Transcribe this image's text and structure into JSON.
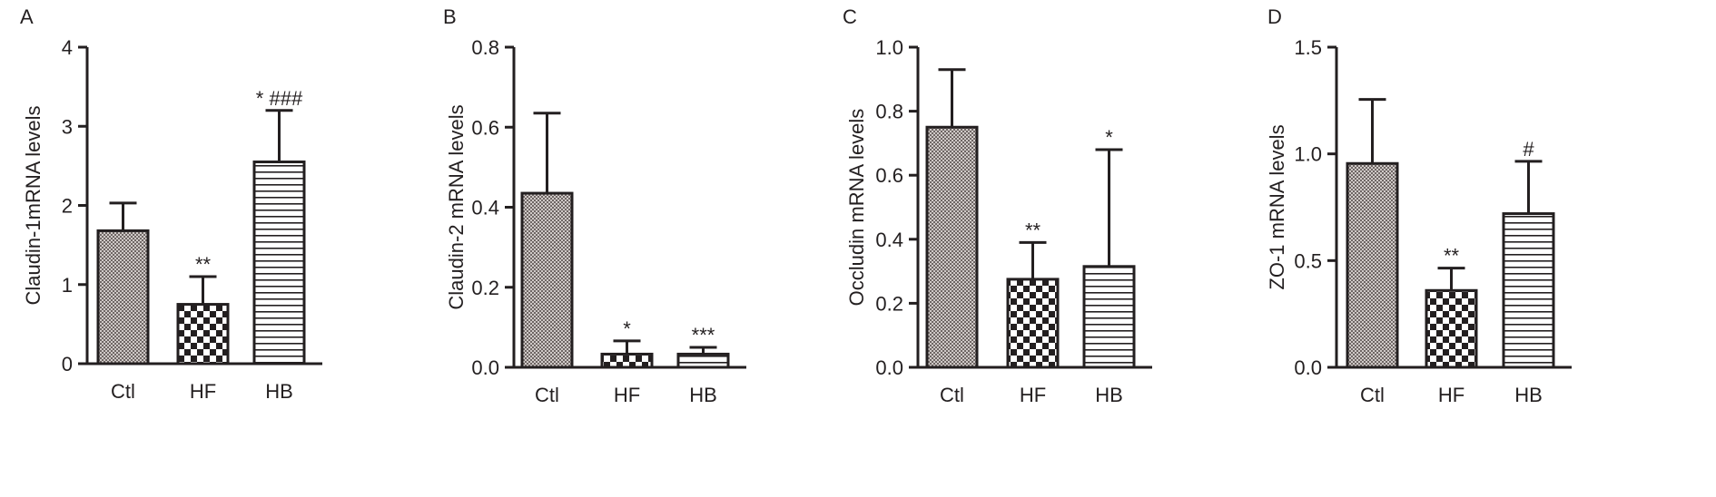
{
  "chart_data": [
    {
      "panel": "A",
      "type": "bar",
      "ylabel": "Claudin-1mRNA levels",
      "ylim": [
        0,
        4
      ],
      "yticks": [
        "0",
        "1",
        "2",
        "3",
        "4"
      ],
      "categories": [
        "Ctl",
        "HF",
        "HB"
      ],
      "values": [
        1.68,
        0.75,
        2.55
      ],
      "errors": [
        0.35,
        0.35,
        0.65
      ],
      "annotations": [
        "",
        "**",
        "* ###"
      ]
    },
    {
      "panel": "B",
      "type": "bar",
      "ylabel": "Claudin-2 mRNA levels",
      "ylim": [
        0,
        0.8
      ],
      "yticks": [
        "0.0",
        "0.2",
        "0.4",
        "0.6",
        "0.8"
      ],
      "categories": [
        "Ctl",
        "HF",
        "HB"
      ],
      "values": [
        0.435,
        0.033,
        0.033
      ],
      "errors": [
        0.2,
        0.033,
        0.017
      ],
      "annotations": [
        "",
        "*",
        "***"
      ]
    },
    {
      "panel": "C",
      "type": "bar",
      "ylabel": "Occludin mRNA levels",
      "ylim": [
        0,
        1.0
      ],
      "yticks": [
        "0.0",
        "0.2",
        "0.4",
        "0.6",
        "0.8",
        "1.0"
      ],
      "categories": [
        "Ctl",
        "HF",
        "HB"
      ],
      "values": [
        0.75,
        0.275,
        0.315
      ],
      "errors": [
        0.18,
        0.115,
        0.365
      ],
      "annotations": [
        "",
        "**",
        "*"
      ]
    },
    {
      "panel": "D",
      "type": "bar",
      "ylabel": "ZO-1 mRNA levels",
      "ylim": [
        0,
        1.5
      ],
      "yticks": [
        "0.0",
        "0.5",
        "1.0",
        "1.5"
      ],
      "categories": [
        "Ctl",
        "HF",
        "HB"
      ],
      "values": [
        0.955,
        0.36,
        0.72
      ],
      "errors": [
        0.3,
        0.105,
        0.245
      ],
      "annotations": [
        "",
        "**",
        "#"
      ]
    }
  ]
}
